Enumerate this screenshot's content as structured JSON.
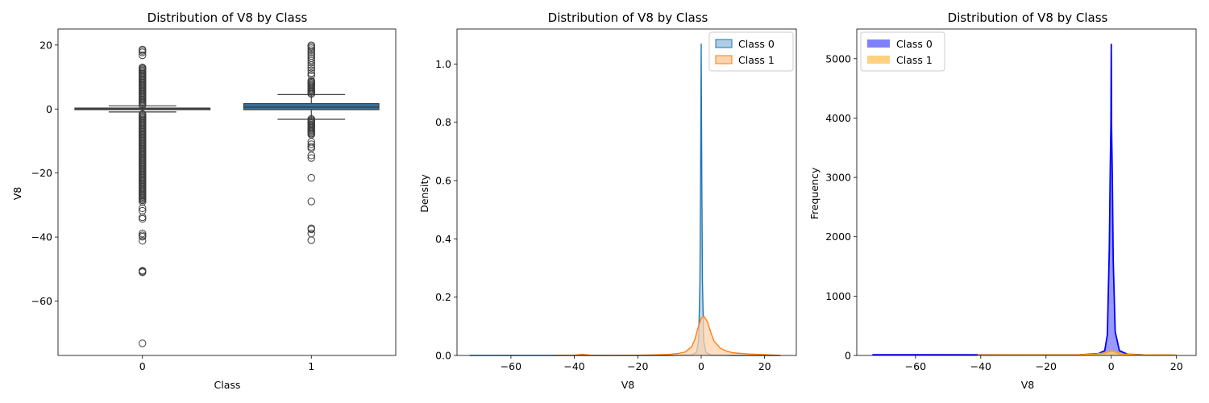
{
  "chart_data": [
    {
      "type": "box",
      "title": "Distribution of V8 by Class",
      "xlabel": "Class",
      "ylabel": "V8",
      "categories": [
        "0",
        "1"
      ],
      "ylim": [
        -77,
        25
      ],
      "yticks": [
        20,
        0,
        -20,
        -40,
        -60
      ],
      "box_color": "#3274a1",
      "boxes": [
        {
          "category": "0",
          "q1": -0.2,
          "median": 0.0,
          "q3": 0.3,
          "whisker_low": -0.9,
          "whisker_high": 1.0,
          "outlier_range_high": [
            1.2,
            12.5
          ],
          "outlier_range_low": [
            -1.2,
            -28.5
          ],
          "outliers": [
            18.6,
            18.2,
            17.7,
            16.8,
            13.0,
            12.7,
            -29.0,
            -31.0,
            -31.8,
            -33.8,
            -34.3,
            -38.9,
            -39.5,
            -39.9,
            -41.2,
            -50.5,
            -50.8,
            -51.0,
            -73.2
          ]
        },
        {
          "category": "1",
          "q1": -0.2,
          "median": 0.6,
          "q3": 1.7,
          "whisker_low": -3.2,
          "whisker_high": 4.5,
          "outlier_range_high": [
            4.7,
            9.2
          ],
          "outlier_range_low": [
            -3.0,
            -8.0
          ],
          "outliers": [
            19.9,
            19.5,
            19.0,
            18.4,
            17.8,
            17.2,
            16.6,
            15.9,
            15.2,
            14.5,
            13.7,
            12.9,
            12.1,
            11.2,
            10.5,
            -10.2,
            -11.0,
            -11.8,
            -12.3,
            -14.5,
            -15.3,
            -21.5,
            -28.9,
            -37.3,
            -37.6,
            -38.9,
            -41.0
          ]
        }
      ]
    },
    {
      "type": "area",
      "title": "Distribution of V8 by Class",
      "xlabel": "V8",
      "ylabel": "Density",
      "xlim": [
        -77,
        30
      ],
      "ylim": [
        0,
        1.12
      ],
      "xticks": [
        -60,
        -40,
        -20,
        0,
        20
      ],
      "yticks": [
        0.0,
        0.2,
        0.4,
        0.6,
        0.8,
        1.0
      ],
      "legend_position": "upper right",
      "series": [
        {
          "name": "Class 0",
          "color": "#1f77b4",
          "fill": "#aecde4",
          "x": [
            -73,
            -40,
            -10,
            -3,
            -1.5,
            -0.8,
            -0.4,
            -0.2,
            0,
            0.2,
            0.4,
            0.8,
            1.5,
            3,
            10,
            25
          ],
          "y": [
            0.0,
            0.0,
            0.0,
            0.002,
            0.01,
            0.05,
            0.25,
            0.6,
            1.07,
            0.6,
            0.25,
            0.05,
            0.01,
            0.002,
            0.0,
            0.0
          ]
        },
        {
          "name": "Class 1",
          "color": "#ff7f0e",
          "fill": "#ffd3ad",
          "x": [
            -46,
            -40,
            -37.5,
            -35,
            -30,
            -20,
            -15,
            -10,
            -7,
            -5,
            -3,
            -2,
            -1,
            0,
            0.8,
            2,
            3,
            4,
            6,
            8,
            10,
            15,
            20,
            25
          ],
          "y": [
            0.0,
            0.0008,
            0.004,
            0.001,
            0.0005,
            0.001,
            0.002,
            0.004,
            0.007,
            0.012,
            0.03,
            0.055,
            0.095,
            0.128,
            0.135,
            0.115,
            0.08,
            0.05,
            0.025,
            0.015,
            0.009,
            0.005,
            0.003,
            0.0
          ]
        }
      ]
    },
    {
      "type": "histogram",
      "title": "Distribution of V8 by Class",
      "xlabel": "V8",
      "ylabel": "Frequency",
      "xlim": [
        -78,
        26
      ],
      "ylim": [
        0,
        5500
      ],
      "xticks": [
        -60,
        -40,
        -20,
        0,
        20
      ],
      "yticks": [
        0,
        1000,
        2000,
        3000,
        4000,
        5000
      ],
      "legend_position": "upper left",
      "series": [
        {
          "name": "Class 0",
          "color": "#0000ff",
          "fill": "#8080ff",
          "x": [
            -73.2,
            -20,
            -10,
            -4,
            -2,
            -1.2,
            -0.6,
            -0.3,
            -0.1,
            0.0,
            0.1,
            0.3,
            0.6,
            1.2,
            2.5,
            5,
            10,
            18.6
          ],
          "y": [
            12,
            10,
            10,
            30,
            80,
            350,
            1800,
            3200,
            3900,
            5250,
            3800,
            3100,
            1600,
            400,
            80,
            20,
            10,
            5
          ]
        },
        {
          "name": "Class 1",
          "color": "#ffa500",
          "fill": "#ffd180",
          "x": [
            -41,
            -20,
            -10,
            -5,
            -2,
            -1,
            0,
            1,
            2,
            4,
            8,
            12,
            20
          ],
          "y": [
            8,
            8,
            10,
            20,
            40,
            60,
            75,
            65,
            40,
            20,
            10,
            8,
            6
          ]
        }
      ]
    }
  ]
}
